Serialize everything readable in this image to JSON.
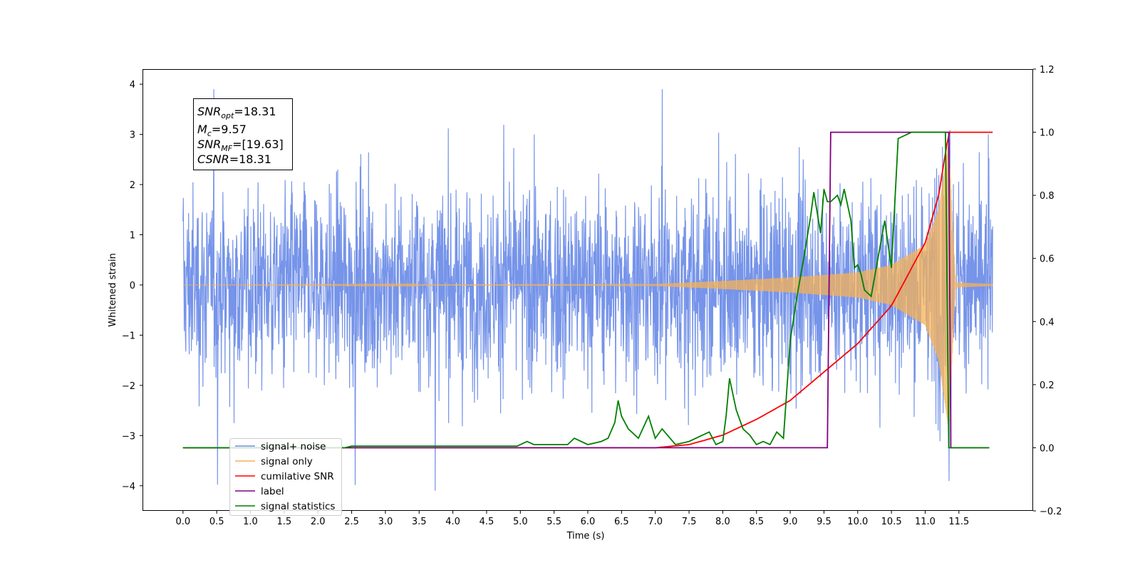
{
  "chart_data": {
    "type": "line",
    "title": "",
    "xlabel": "Time (s)",
    "ylabel": "Whitened strain",
    "y2label": "",
    "xlim": [
      -0.6,
      12.6
    ],
    "ylim": [
      -4.5,
      4.3
    ],
    "y2lim": [
      -0.2,
      1.2
    ],
    "x_ticks": [
      "0.0",
      "0.5",
      "1.0",
      "1.5",
      "2.0",
      "2.5",
      "3.0",
      "3.5",
      "4.0",
      "4.5",
      "5.0",
      "5.5",
      "6.0",
      "6.5",
      "7.0",
      "7.5",
      "8.0",
      "8.5",
      "9.0",
      "9.5",
      "10.0",
      "10.5",
      "11.0",
      "11.5"
    ],
    "y_ticks": [
      "4",
      "3",
      "2",
      "1",
      "0",
      "−1",
      "−2",
      "−3",
      "−4"
    ],
    "y2_ticks": [
      "1.2",
      "1.0",
      "0.8",
      "0.6",
      "0.4",
      "0.2",
      "0.0",
      "−0.2"
    ],
    "grid": false,
    "legend_position": "lower-left",
    "annotation": [
      {
        "main": "SNR",
        "sub": "opt",
        "rest": "=18.31"
      },
      {
        "main": "M",
        "sub": "c",
        "rest": "=9.57"
      },
      {
        "main": "SNR",
        "sub": "MF",
        "rest": "=[19.63]"
      },
      {
        "main": "CSNR",
        "sub": "",
        "rest": "=18.31"
      }
    ],
    "series": [
      {
        "name": "signal+ noise",
        "axis": "left",
        "color": "#6f8ee8",
        "description": "whitened noise, roughly 0 ± 1, spikes to ±3.9, from t = 0.0 to 12.0 s",
        "x_range": [
          0.0,
          12.0
        ]
      },
      {
        "name": "signal only",
        "axis": "left",
        "color": "#f7b256",
        "description": "chirp oscillation, amplitude grows from ~0 near t = 7 s to ~±2.9 at t ≈ 11.35 s, then ~0",
        "x": [
          0,
          7.0,
          8.0,
          9.0,
          9.5,
          10.0,
          10.5,
          11.0,
          11.2,
          11.35,
          11.45,
          12.0
        ],
        "amplitude": [
          0.0,
          0.02,
          0.08,
          0.15,
          0.2,
          0.25,
          0.4,
          0.8,
          1.5,
          2.9,
          0.05,
          0.02
        ]
      },
      {
        "name": "cumilative SNR",
        "axis": "right",
        "color": "#ff0000",
        "x": [
          0,
          7.0,
          7.5,
          8.0,
          8.5,
          9.0,
          9.5,
          10.0,
          10.5,
          11.0,
          11.2,
          11.35,
          12.0
        ],
        "values": [
          0.0,
          0.0,
          0.01,
          0.04,
          0.09,
          0.15,
          0.24,
          0.33,
          0.45,
          0.65,
          0.8,
          1.0,
          1.0
        ]
      },
      {
        "name": "label",
        "axis": "right",
        "color": "#800080",
        "x": [
          0,
          9.55,
          9.6,
          11.35,
          11.38,
          11.95
        ],
        "values": [
          0.0,
          0.0,
          1.0,
          1.0,
          0.0,
          0.0
        ]
      },
      {
        "name": "signal statistics",
        "axis": "right",
        "color": "#008000",
        "x": [
          0,
          2.4,
          2.5,
          3.0,
          4.0,
          4.95,
          5.1,
          5.2,
          5.4,
          5.7,
          5.8,
          6.0,
          6.2,
          6.3,
          6.4,
          6.45,
          6.5,
          6.6,
          6.75,
          6.9,
          7.0,
          7.1,
          7.3,
          7.5,
          7.7,
          7.8,
          7.9,
          8.0,
          8.05,
          8.1,
          8.2,
          8.3,
          8.4,
          8.5,
          8.6,
          8.7,
          8.8,
          8.9,
          9.0,
          9.1,
          9.2,
          9.3,
          9.35,
          9.45,
          9.5,
          9.55,
          9.6,
          9.7,
          9.75,
          9.8,
          9.9,
          9.95,
          10.0,
          10.05,
          10.1,
          10.2,
          10.3,
          10.4,
          10.5,
          10.6,
          10.8,
          11.0,
          11.3,
          11.35,
          11.38,
          11.45,
          11.95
        ],
        "values": [
          0.0,
          0.0,
          0.005,
          0.005,
          0.005,
          0.005,
          0.02,
          0.01,
          0.01,
          0.01,
          0.03,
          0.01,
          0.02,
          0.03,
          0.08,
          0.15,
          0.1,
          0.06,
          0.03,
          0.1,
          0.03,
          0.06,
          0.01,
          0.02,
          0.04,
          0.05,
          0.01,
          0.02,
          0.1,
          0.22,
          0.12,
          0.06,
          0.04,
          0.01,
          0.02,
          0.01,
          0.05,
          0.03,
          0.34,
          0.48,
          0.6,
          0.73,
          0.81,
          0.68,
          0.82,
          0.78,
          0.78,
          0.8,
          0.77,
          0.82,
          0.72,
          0.57,
          0.58,
          0.55,
          0.5,
          0.48,
          0.6,
          0.72,
          0.57,
          0.98,
          1.0,
          1.0,
          1.0,
          0.0,
          0.0,
          0.0,
          0.0
        ]
      }
    ]
  }
}
